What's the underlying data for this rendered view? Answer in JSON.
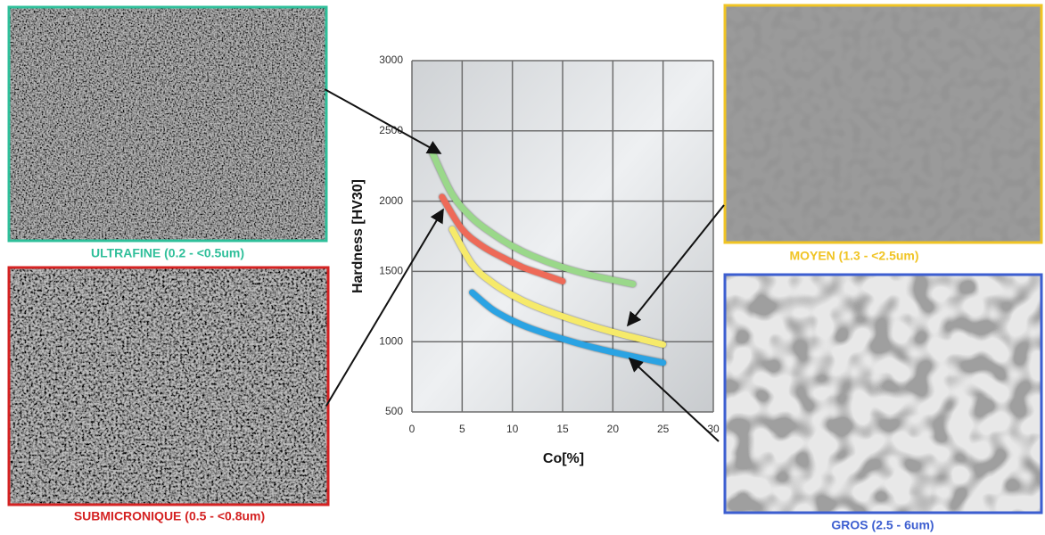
{
  "chart_data": {
    "type": "line",
    "x_label": "Co[%]",
    "y_label": "Hardness [HV30]",
    "xlim": [
      0,
      30
    ],
    "xticks": [
      0,
      5,
      10,
      15,
      20,
      25,
      30
    ],
    "ylim": [
      500,
      3000
    ],
    "yticks": [
      500,
      1000,
      1500,
      2000,
      2500,
      3000
    ],
    "grid": true,
    "series": [
      {
        "color": "#9ad88a",
        "x": [
          2,
          4,
          6,
          8,
          10,
          12,
          15,
          18,
          22
        ],
        "values": [
          2350,
          2050,
          1880,
          1770,
          1680,
          1610,
          1530,
          1470,
          1410
        ]
      },
      {
        "color": "#ee6a58",
        "x": [
          3,
          5,
          7,
          9,
          11,
          13,
          15
        ],
        "values": [
          2030,
          1800,
          1680,
          1600,
          1530,
          1480,
          1430
        ]
      },
      {
        "color": "#f6ea6a",
        "x": [
          4,
          6,
          8,
          10,
          12,
          15,
          18,
          21,
          25
        ],
        "values": [
          1800,
          1550,
          1420,
          1330,
          1260,
          1180,
          1110,
          1050,
          980
        ]
      },
      {
        "color": "#2ba3e3",
        "x": [
          6,
          8,
          10,
          12,
          15,
          18,
          21,
          25
        ],
        "values": [
          1350,
          1230,
          1150,
          1090,
          1020,
          960,
          910,
          850
        ]
      }
    ],
    "annotations": [
      {
        "text": "ULTRAFINE (0.2 - <0.5um)",
        "color": "#2fbf9a"
      },
      {
        "text": "SUBMICRONIQUE (0.5 - <0.8um)",
        "color": "#d42222"
      },
      {
        "text": "MOYEN (1.3 - <2.5um)",
        "color": "#f0c424"
      },
      {
        "text": "GROS (2.5 - 6um)",
        "color": "#3c5ed0"
      }
    ]
  }
}
